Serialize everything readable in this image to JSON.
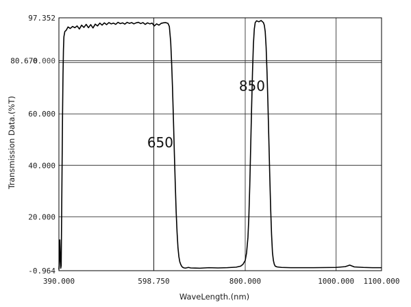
{
  "chart_data": {
    "type": "line",
    "xlabel": "WaveLength.(nm)",
    "ylabel": "Transmission Data.(%T)",
    "xlim": [
      390,
      1100
    ],
    "ylim": [
      -0.964,
      97.352
    ],
    "x_tick_labels": [
      {
        "value": 390,
        "label": "390.000"
      },
      {
        "value": 598.75,
        "label": "598.750"
      },
      {
        "value": 800,
        "label": "800.000"
      },
      {
        "value": 1000,
        "label": "1000.000"
      },
      {
        "value": 1100,
        "label": "1100.000"
      }
    ],
    "y_tick_labels": [
      {
        "value": -0.964,
        "label": "-0.964"
      },
      {
        "value": 20,
        "label": "20.000"
      },
      {
        "value": 40,
        "label": "40.000"
      },
      {
        "value": 60,
        "label": "60.000"
      },
      {
        "value": 80.67,
        "label": "80.670"
      },
      {
        "value": 97.352,
        "label": "97.352"
      }
    ],
    "overlapping_label": "0.000",
    "grid_x": [
      598.75,
      800,
      1000
    ],
    "grid_y": [
      20,
      40,
      60,
      80,
      80.67
    ],
    "annotations": [
      {
        "text": "650",
        "x": 613,
        "y": 47
      },
      {
        "text": "850",
        "x": 815,
        "y": 69
      }
    ],
    "colors": {
      "line": "#000000",
      "grid": "#333333",
      "frame": "#000000"
    },
    "series": [
      {
        "x": [
          390,
          391,
          392,
          393,
          394,
          395,
          396,
          397,
          398,
          399,
          400,
          401,
          403,
          406,
          410,
          415,
          420,
          425,
          430,
          435,
          440,
          445,
          450,
          455,
          460,
          465,
          470,
          475,
          480,
          485,
          490,
          495,
          500,
          505,
          510,
          515,
          520,
          525,
          530,
          535,
          540,
          545,
          550,
          555,
          560,
          565,
          570,
          575,
          580,
          585,
          590,
          595,
          600,
          605,
          610,
          615,
          620,
          625,
          630,
          633,
          636,
          638,
          640,
          642,
          644,
          646,
          648,
          650,
          652,
          654,
          656,
          658,
          660,
          662,
          664,
          666,
          668,
          670,
          675,
          680,
          690,
          700,
          720,
          740,
          760,
          780,
          790,
          795,
          800,
          803,
          806,
          808,
          810,
          812,
          814,
          816,
          818,
          820,
          822,
          825,
          830,
          835,
          840,
          842,
          844,
          846,
          848,
          850,
          852,
          854,
          856,
          858,
          860,
          862,
          864,
          866,
          870,
          880,
          900,
          950,
          1000,
          1020,
          1030,
          1040,
          1060,
          1080,
          1100
        ],
        "y": [
          -0.5,
          3,
          11,
          5,
          0,
          1,
          20,
          40,
          60,
          75,
          85,
          90,
          92,
          92.5,
          93.8,
          93.2,
          94,
          93.5,
          94.2,
          93.0,
          94.5,
          93.6,
          94.8,
          93.5,
          94.7,
          93.4,
          94.9,
          94.2,
          95.3,
          94.5,
          95.4,
          94.7,
          95.5,
          95.0,
          95.3,
          94.8,
          95.6,
          95.1,
          95.4,
          94.9,
          95.6,
          95.2,
          95.5,
          95.0,
          95.4,
          95.6,
          95.1,
          95.5,
          94.8,
          95.4,
          95.0,
          95.3,
          94.2,
          95.0,
          94.5,
          95.2,
          95.4,
          95.5,
          95.2,
          94.0,
          88,
          80,
          70,
          58,
          45,
          33,
          22,
          14,
          8,
          4.5,
          2.5,
          1.5,
          0.8,
          0.4,
          0.2,
          0.1,
          0.05,
          0.1,
          0.3,
          0.1,
          0.05,
          0,
          0.2,
          0.1,
          0.2,
          0.4,
          0.8,
          1.5,
          3,
          6,
          12,
          20,
          32,
          47,
          62,
          76,
          87,
          93,
          95.5,
          96.2,
          95.8,
          96.3,
          95.5,
          94.5,
          92,
          86,
          76,
          64,
          50,
          36,
          23,
          13,
          6,
          3,
          1.5,
          0.8,
          0.5,
          0.3,
          0.2,
          0.2,
          0.3,
          0.6,
          1.2,
          0.5,
          0.3,
          0.2,
          0.2
        ]
      }
    ]
  }
}
